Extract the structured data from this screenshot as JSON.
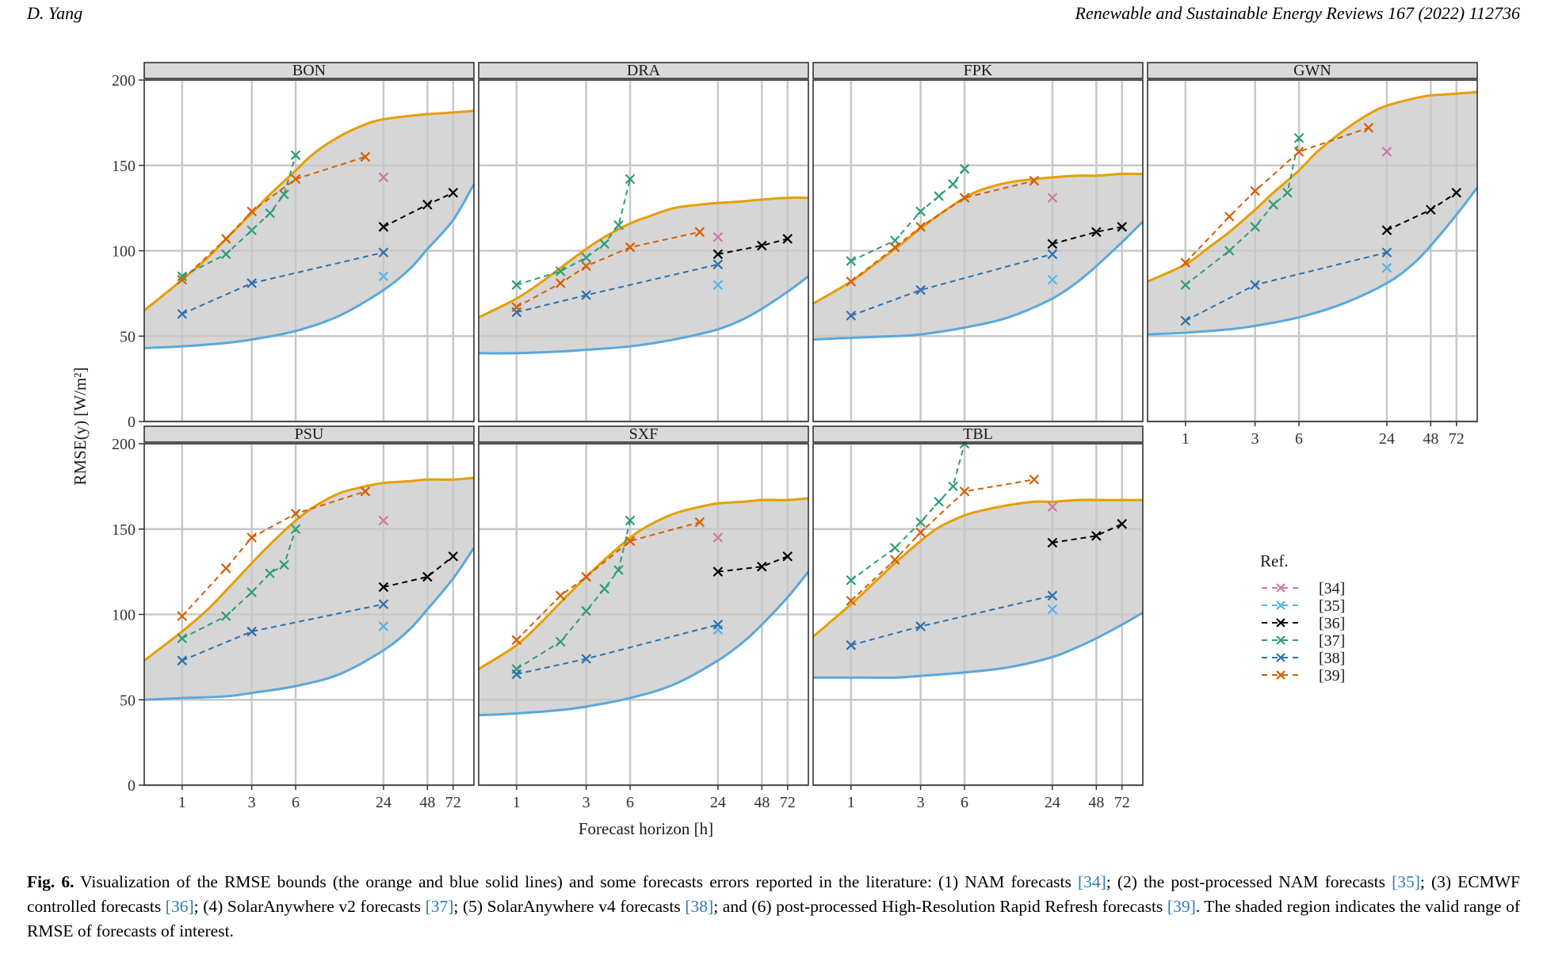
{
  "header": {
    "left": "D. Yang",
    "right": "Renewable and Sustainable Energy Reviews 167 (2022) 112736"
  },
  "chart_data": {
    "type": "line",
    "xlabel": "Forecast horizon [h]",
    "ylabel": "RMSE(y) [W/m²]",
    "x_scale": "log",
    "x_ticks": [
      1,
      3,
      6,
      24,
      48,
      72
    ],
    "x_range": [
      0.55,
      100
    ],
    "ylim": [
      0,
      200
    ],
    "y_ticks": [
      0,
      50,
      100,
      150,
      200
    ],
    "grid": true,
    "legend": {
      "title": "Ref.",
      "placement": "right",
      "entries": [
        {
          "ref": "34",
          "label": "[34]",
          "color": "#cc79a7"
        },
        {
          "ref": "35",
          "label": "[35]",
          "color": "#56b4e9"
        },
        {
          "ref": "36",
          "label": "[36]",
          "color": "#000000"
        },
        {
          "ref": "37",
          "label": "[37]",
          "color": "#2e9e72"
        },
        {
          "ref": "38",
          "label": "[38]",
          "color": "#2c6fae"
        },
        {
          "ref": "39",
          "label": "[39]",
          "color": "#d55e00"
        }
      ]
    },
    "bound_colors": {
      "upper": "#e69f00",
      "lower": "#5aa8dc",
      "fill": "#d6d6d6"
    },
    "panels": [
      {
        "name": "BON",
        "upper": {
          "x": [
            0.55,
            1,
            1.5,
            2,
            3,
            4,
            6,
            8,
            12,
            18,
            24,
            36,
            48,
            72,
            100
          ],
          "y": [
            65,
            83,
            96,
            107,
            122,
            133,
            147,
            157,
            167,
            174,
            177,
            179,
            180,
            181,
            182
          ]
        },
        "lower": {
          "x": [
            0.55,
            1,
            2,
            3,
            6,
            12,
            24,
            36,
            48,
            72,
            100
          ],
          "y": [
            43,
            44,
            46,
            48,
            53,
            62,
            77,
            89,
            101,
            118,
            139
          ]
        },
        "series": {
          "34": {
            "x": [
              24
            ],
            "y": [
              143
            ]
          },
          "35": {
            "x": [
              24
            ],
            "y": [
              85
            ]
          },
          "36": {
            "x": [
              24,
              48,
              72
            ],
            "y": [
              114,
              127,
              134
            ]
          },
          "37": {
            "x": [
              1,
              2,
              3,
              4,
              5,
              6
            ],
            "y": [
              85,
              98,
              112,
              122,
              133,
              156
            ]
          },
          "38": {
            "x": [
              1,
              3,
              24
            ],
            "y": [
              63,
              81,
              99
            ]
          },
          "39": {
            "x": [
              1,
              2,
              3,
              6,
              18
            ],
            "y": [
              83,
              107,
              123,
              142,
              155
            ]
          }
        }
      },
      {
        "name": "DRA",
        "upper": {
          "x": [
            0.55,
            1,
            1.5,
            2,
            3,
            4,
            6,
            8,
            12,
            18,
            24,
            36,
            48,
            72,
            100
          ],
          "y": [
            61,
            72,
            82,
            90,
            101,
            108,
            116,
            120,
            125,
            127,
            128,
            129,
            130,
            131,
            131
          ]
        },
        "lower": {
          "x": [
            0.55,
            1,
            2,
            3,
            6,
            12,
            24,
            36,
            48,
            72,
            100
          ],
          "y": [
            40,
            40,
            41,
            42,
            44,
            48,
            54,
            60,
            66,
            76,
            85
          ]
        },
        "series": {
          "34": {
            "x": [
              24
            ],
            "y": [
              108
            ]
          },
          "35": {
            "x": [
              24
            ],
            "y": [
              80
            ]
          },
          "36": {
            "x": [
              24,
              48,
              72
            ],
            "y": [
              98,
              103,
              107
            ]
          },
          "37": {
            "x": [
              1,
              2,
              3,
              4,
              5,
              6
            ],
            "y": [
              80,
              88,
              96,
              104,
              115,
              142
            ]
          },
          "38": {
            "x": [
              1,
              3,
              24
            ],
            "y": [
              64,
              74,
              92
            ]
          },
          "39": {
            "x": [
              1,
              2,
              3,
              6,
              18
            ],
            "y": [
              67,
              81,
              91,
              102,
              111
            ]
          }
        }
      },
      {
        "name": "FPK",
        "upper": {
          "x": [
            0.55,
            1,
            1.5,
            2,
            3,
            4,
            6,
            8,
            12,
            18,
            24,
            36,
            48,
            72,
            100
          ],
          "y": [
            69,
            82,
            93,
            101,
            113,
            121,
            131,
            136,
            140,
            142,
            143,
            144,
            144,
            145,
            145
          ]
        },
        "lower": {
          "x": [
            0.55,
            1,
            2,
            3,
            6,
            12,
            24,
            36,
            48,
            72,
            100
          ],
          "y": [
            48,
            49,
            50,
            51,
            55,
            61,
            72,
            82,
            91,
            105,
            117
          ]
        },
        "series": {
          "34": {
            "x": [
              24
            ],
            "y": [
              131
            ]
          },
          "35": {
            "x": [
              24
            ],
            "y": [
              83
            ]
          },
          "36": {
            "x": [
              24,
              48,
              72
            ],
            "y": [
              104,
              111,
              114
            ]
          },
          "37": {
            "x": [
              1,
              2,
              3,
              4,
              5,
              6
            ],
            "y": [
              94,
              106,
              123,
              132,
              139,
              148
            ]
          },
          "38": {
            "x": [
              1,
              3,
              24
            ],
            "y": [
              62,
              77,
              98
            ]
          },
          "39": {
            "x": [
              1,
              2,
              3,
              6,
              18
            ],
            "y": [
              82,
              102,
              114,
              131,
              141
            ]
          }
        }
      },
      {
        "name": "GWN",
        "upper": {
          "x": [
            0.55,
            1,
            1.5,
            2,
            3,
            4,
            6,
            8,
            12,
            18,
            24,
            36,
            48,
            72,
            100
          ],
          "y": [
            82,
            92,
            103,
            111,
            124,
            134,
            147,
            158,
            170,
            180,
            185,
            189,
            191,
            192,
            193
          ]
        },
        "lower": {
          "x": [
            0.55,
            1,
            2,
            3,
            6,
            12,
            24,
            36,
            48,
            72,
            100
          ],
          "y": [
            51,
            52,
            54,
            56,
            61,
            69,
            81,
            92,
            103,
            121,
            137
          ]
        },
        "series": {
          "34": {
            "x": [
              24
            ],
            "y": [
              158
            ]
          },
          "35": {
            "x": [
              24
            ],
            "y": [
              90
            ]
          },
          "36": {
            "x": [
              24,
              48,
              72
            ],
            "y": [
              112,
              124,
              134
            ]
          },
          "37": {
            "x": [
              1,
              2,
              3,
              4,
              5,
              6
            ],
            "y": [
              80,
              100,
              114,
              127,
              134,
              166
            ]
          },
          "38": {
            "x": [
              1,
              3,
              24
            ],
            "y": [
              59,
              80,
              99
            ]
          },
          "39": {
            "x": [
              1,
              2,
              3,
              6,
              18
            ],
            "y": [
              93,
              120,
              135,
              158,
              172
            ]
          }
        }
      },
      {
        "name": "PSU",
        "upper": {
          "x": [
            0.55,
            1,
            1.5,
            2,
            3,
            4,
            6,
            8,
            12,
            18,
            24,
            36,
            48,
            72,
            100
          ],
          "y": [
            73,
            90,
            103,
            114,
            130,
            141,
            155,
            163,
            171,
            175,
            177,
            178,
            179,
            179,
            180
          ]
        },
        "lower": {
          "x": [
            0.55,
            1,
            2,
            3,
            6,
            12,
            24,
            36,
            48,
            72,
            100
          ],
          "y": [
            50,
            51,
            52,
            54,
            58,
            65,
            79,
            91,
            103,
            121,
            139
          ]
        },
        "series": {
          "34": {
            "x": [
              24
            ],
            "y": [
              155
            ]
          },
          "35": {
            "x": [
              24
            ],
            "y": [
              93
            ]
          },
          "36": {
            "x": [
              24,
              48,
              72
            ],
            "y": [
              116,
              122,
              134
            ]
          },
          "37": {
            "x": [
              1,
              2,
              3,
              4,
              5,
              6
            ],
            "y": [
              86,
              99,
              113,
              124,
              129,
              150
            ]
          },
          "38": {
            "x": [
              1,
              3,
              24
            ],
            "y": [
              73,
              90,
              106
            ]
          },
          "39": {
            "x": [
              1,
              2,
              3,
              6,
              18
            ],
            "y": [
              99,
              127,
              145,
              159,
              172
            ]
          }
        }
      },
      {
        "name": "SXF",
        "upper": {
          "x": [
            0.55,
            1,
            1.5,
            2,
            3,
            4,
            6,
            8,
            12,
            18,
            24,
            36,
            48,
            72,
            100
          ],
          "y": [
            68,
            82,
            96,
            107,
            122,
            132,
            145,
            152,
            159,
            163,
            165,
            166,
            167,
            167,
            168
          ]
        },
        "lower": {
          "x": [
            0.55,
            1,
            2,
            3,
            6,
            12,
            24,
            36,
            48,
            72,
            100
          ],
          "y": [
            41,
            42,
            44,
            46,
            51,
            59,
            73,
            84,
            94,
            110,
            125
          ]
        },
        "series": {
          "34": {
            "x": [
              24
            ],
            "y": [
              145
            ]
          },
          "35": {
            "x": [
              24
            ],
            "y": [
              91
            ]
          },
          "36": {
            "x": [
              24,
              48,
              72
            ],
            "y": [
              125,
              128,
              134
            ]
          },
          "37": {
            "x": [
              1,
              2,
              3,
              4,
              5,
              6
            ],
            "y": [
              68,
              84,
              102,
              115,
              126,
              155
            ]
          },
          "38": {
            "x": [
              1,
              3,
              24
            ],
            "y": [
              65,
              74,
              94
            ]
          },
          "39": {
            "x": [
              1,
              2,
              3,
              6,
              18
            ],
            "y": [
              85,
              111,
              122,
              143,
              154
            ]
          }
        }
      },
      {
        "name": "TBL",
        "upper": {
          "x": [
            0.55,
            1,
            1.5,
            2,
            3,
            4,
            6,
            8,
            12,
            18,
            24,
            36,
            48,
            72,
            100
          ],
          "y": [
            87,
            106,
            120,
            130,
            143,
            151,
            158,
            161,
            164,
            166,
            166,
            167,
            167,
            167,
            167
          ]
        },
        "lower": {
          "x": [
            0.55,
            1,
            2,
            3,
            6,
            12,
            24,
            36,
            48,
            72,
            100
          ],
          "y": [
            63,
            63,
            63,
            64,
            66,
            69,
            75,
            81,
            86,
            94,
            101
          ]
        },
        "series": {
          "34": {
            "x": [
              24
            ],
            "y": [
              163
            ]
          },
          "35": {
            "x": [
              24
            ],
            "y": [
              103
            ]
          },
          "36": {
            "x": [
              24,
              48,
              72
            ],
            "y": [
              142,
              146,
              153
            ]
          },
          "37": {
            "x": [
              1,
              2,
              3,
              4,
              5,
              6
            ],
            "y": [
              120,
              139,
              154,
              166,
              175,
              200
            ]
          },
          "38": {
            "x": [
              1,
              3,
              24
            ],
            "y": [
              82,
              93,
              111
            ]
          },
          "39": {
            "x": [
              1,
              2,
              3,
              6,
              18
            ],
            "y": [
              108,
              132,
              148,
              172,
              179
            ]
          }
        }
      }
    ]
  },
  "caption": {
    "label": "Fig. 6.",
    "parts": [
      {
        "text": " Visualization of the RMSE bounds (the orange and blue solid lines) and some forecasts errors reported in the literature: (1) NAM forecasts ",
        "ref": false
      },
      {
        "text": "[34]",
        "ref": true
      },
      {
        "text": "; (2) the post-processed NAM forecasts ",
        "ref": false
      },
      {
        "text": "[35]",
        "ref": true
      },
      {
        "text": "; (3) ECMWF controlled forecasts ",
        "ref": false
      },
      {
        "text": "[36]",
        "ref": true
      },
      {
        "text": "; (4) SolarAnywhere v2 forecasts ",
        "ref": false
      },
      {
        "text": "[37]",
        "ref": true
      },
      {
        "text": "; (5) SolarAnywhere v4 forecasts ",
        "ref": false
      },
      {
        "text": "[38]",
        "ref": true
      },
      {
        "text": "; and (6) post-processed High-Resolution Rapid Refresh forecasts ",
        "ref": false
      },
      {
        "text": "[39]",
        "ref": true
      },
      {
        "text": ". The shaded region indicates the valid range of RMSE of forecasts of interest.",
        "ref": false
      }
    ]
  }
}
